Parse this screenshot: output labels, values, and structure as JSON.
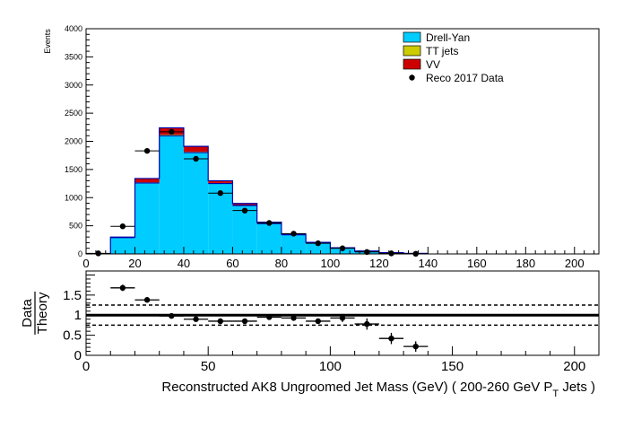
{
  "chart_data": [
    {
      "type": "bar",
      "subtype": "stacked-histogram",
      "title": "",
      "xlabel": "",
      "ylabel": "Events",
      "xlim": [
        0,
        210
      ],
      "ylim": [
        0,
        4000
      ],
      "bin_edges": [
        0,
        10,
        20,
        30,
        40,
        50,
        60,
        70,
        80,
        90,
        100,
        110,
        120,
        130,
        140
      ],
      "x_ticks": [
        "0",
        "20",
        "40",
        "60",
        "80",
        "100",
        "120",
        "140",
        "160",
        "180",
        "200"
      ],
      "y_ticks": [
        "0",
        "500",
        "1000",
        "1500",
        "2000",
        "2500",
        "3000",
        "3500",
        "4000"
      ],
      "series": [
        {
          "name": "Drell-Yan",
          "color": "#00ccff",
          "values": [
            5,
            290,
            1260,
            2100,
            1800,
            1250,
            860,
            540,
            340,
            200,
            105,
            50,
            22,
            8
          ]
        },
        {
          "name": "TT jets",
          "color": "#cccc00",
          "values": [
            0,
            2,
            10,
            20,
            15,
            10,
            6,
            4,
            2,
            1,
            1,
            0,
            0,
            0
          ]
        },
        {
          "name": "VV",
          "color": "#cc0000",
          "values": [
            0,
            8,
            70,
            120,
            95,
            40,
            30,
            20,
            10,
            5,
            3,
            1,
            0,
            0
          ]
        }
      ],
      "data_points": {
        "name": "Reco 2017 Data",
        "color": "#000000",
        "x": [
          5,
          15,
          25,
          35,
          45,
          55,
          65,
          75,
          85,
          95,
          105,
          115,
          125,
          135
        ],
        "y": [
          10,
          490,
          1830,
          2170,
          1690,
          1080,
          770,
          550,
          360,
          190,
          100,
          35,
          10,
          3
        ]
      },
      "legend_position": "top-right",
      "grid": false
    },
    {
      "type": "scatter",
      "subtype": "ratio",
      "title": "",
      "xlabel": "Reconstructed AK8 Ungroomed Jet Mass (GeV) ( 200-260 GeV P",
      "xlabel_sub": "T",
      "xlabel_suffix": " Jets  )",
      "ylabel_numerator": "Data",
      "ylabel_denominator": "Theory",
      "xlim": [
        0,
        210
      ],
      "ylim": [
        0,
        2.1
      ],
      "x_ticks": [
        "0",
        "50",
        "100",
        "150",
        "200"
      ],
      "y_ticks": [
        "0",
        "0.5",
        "1",
        "1.5"
      ],
      "reference_lines": {
        "solid": 1.0,
        "dashed": [
          0.75,
          1.25
        ]
      },
      "points": {
        "x": [
          15,
          25,
          35,
          45,
          55,
          65,
          75,
          85,
          95,
          105,
          115,
          125,
          135
        ],
        "y": [
          1.68,
          1.38,
          0.98,
          0.9,
          0.85,
          0.85,
          0.95,
          0.93,
          0.85,
          0.93,
          0.78,
          0.42,
          0.22
        ],
        "yerr": [
          0.08,
          0.04,
          0.02,
          0.03,
          0.03,
          0.04,
          0.05,
          0.06,
          0.07,
          0.1,
          0.14,
          0.14,
          0.13
        ]
      },
      "grid": false
    }
  ]
}
